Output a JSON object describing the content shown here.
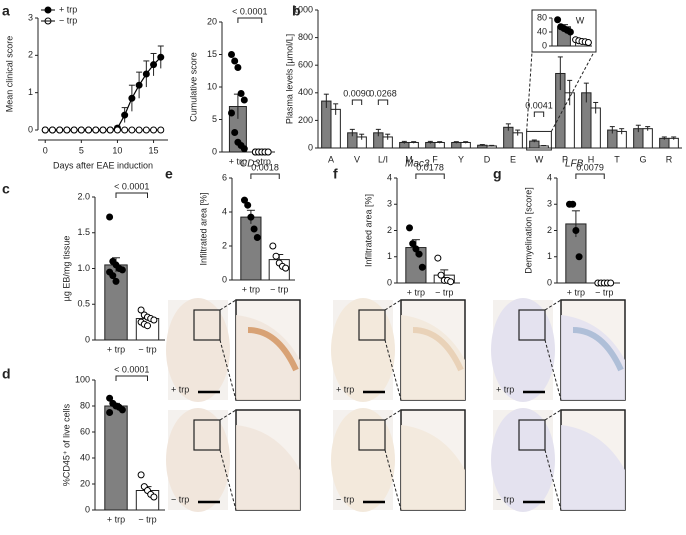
{
  "chart_data": [
    {
      "type": "line",
      "panel_label": "a",
      "y_label": "Mean clinical score",
      "x_label": "Days after EAE induction",
      "x": [
        0,
        1,
        2,
        3,
        4,
        5,
        6,
        7,
        8,
        9,
        10,
        11,
        12,
        13,
        14,
        15,
        16
      ],
      "series": [
        {
          "name": "+ trp",
          "color": "#000000",
          "marker": "filled",
          "values": [
            0,
            0,
            0,
            0,
            0,
            0,
            0,
            0,
            0,
            0,
            0.05,
            0.4,
            0.85,
            1.2,
            1.5,
            1.75,
            1.95
          ],
          "errors": [
            0,
            0,
            0,
            0,
            0,
            0,
            0,
            0,
            0,
            0,
            0.05,
            0.2,
            0.35,
            0.35,
            0.35,
            0.3,
            0.3
          ]
        },
        {
          "name": "− trp",
          "color": "#000000",
          "marker": "open",
          "values": [
            0,
            0,
            0,
            0,
            0,
            0,
            0,
            0,
            0,
            0,
            0,
            0,
            0,
            0,
            0,
            0,
            0
          ]
        }
      ],
      "xlim": [
        -1,
        17
      ],
      "xticks": [
        0,
        5,
        10,
        15
      ],
      "ylim": [
        0,
        3
      ],
      "yticks": [
        0,
        1,
        2,
        3
      ],
      "legend": "upper left"
    },
    {
      "type": "bar",
      "y_label": "Cumulative score",
      "categories": [
        "+ trp",
        "− trp"
      ],
      "values": [
        7,
        0
      ],
      "errors": [
        1.9,
        0
      ],
      "colors": [
        "#808080",
        "#ffffff"
      ],
      "points": [
        [
          15,
          14,
          13,
          9,
          8,
          6,
          3,
          1.5,
          1,
          0.5
        ],
        [
          0,
          0,
          0,
          0,
          0,
          0,
          0,
          0,
          0,
          0
        ]
      ],
      "ylim": [
        0,
        20
      ],
      "yticks": [
        0,
        5,
        10,
        15,
        20
      ],
      "annotation": "< 0.0001"
    },
    {
      "type": "grouped_bar",
      "panel_label": "b",
      "y_label": "Plasma levels [µmol/L]",
      "categories": [
        "A",
        "V",
        "L/I",
        "M",
        "F",
        "Y",
        "D",
        "E",
        "W",
        "P",
        "H",
        "T",
        "G",
        "R"
      ],
      "series": [
        {
          "color": "#808080",
          "values": [
            340,
            110,
            110,
            40,
            40,
            40,
            20,
            150,
            50,
            540,
            400,
            130,
            140,
            70
          ],
          "errors": [
            50,
            25,
            25,
            8,
            8,
            6,
            5,
            25,
            8,
            120,
            70,
            25,
            25,
            10
          ]
        },
        {
          "color": "#ffffff",
          "values": [
            280,
            80,
            80,
            40,
            40,
            40,
            15,
            110,
            15,
            400,
            290,
            120,
            140,
            70
          ],
          "errors": [
            40,
            20,
            20,
            6,
            6,
            6,
            4,
            20,
            3,
            90,
            40,
            20,
            15,
            10
          ]
        }
      ],
      "ylim": [
        0,
        1000
      ],
      "yticks": [
        0,
        200,
        400,
        600,
        800,
        1000
      ],
      "annotations": [
        "0.0090",
        "0.0268",
        "0.0041"
      ]
    },
    {
      "type": "bar",
      "title": "W",
      "values": [
        55,
        15
      ],
      "errors": [
        6,
        2
      ],
      "colors": [
        "#808080",
        "#ffffff"
      ],
      "points": [
        [
          75,
          55,
          50,
          45,
          40
        ],
        [
          18,
          15,
          13,
          12,
          10
        ]
      ],
      "ylim": [
        0,
        80
      ],
      "yticks": [
        0,
        40,
        80
      ]
    },
    {
      "type": "bar",
      "panel_label": "c",
      "y_label": "µg EB/mg tissue",
      "categories": [
        "+ trp",
        "− trp"
      ],
      "values": [
        1.05,
        0.3
      ],
      "errors": [
        0.1,
        0.03
      ],
      "colors": [
        "#808080",
        "#ffffff"
      ],
      "points": [
        [
          1.72,
          1.1,
          1.05,
          1.0,
          0.98,
          0.95,
          0.9,
          0.82
        ],
        [
          0.42,
          0.35,
          0.32,
          0.3,
          0.28,
          0.25,
          0.22,
          0.2
        ]
      ],
      "ylim": [
        0,
        2
      ],
      "yticks": [
        0,
        0.5,
        {
          "value": 1,
          "label": "1.0"
        },
        1.5,
        {
          "value": 2,
          "label": "2.0"
        }
      ],
      "annotation": "< 0.0001"
    },
    {
      "type": "bar",
      "panel_label": "d",
      "y_label": "%CD45⁺ of live cells",
      "categories": [
        "+ trp",
        "− trp"
      ],
      "values": [
        80,
        15
      ],
      "errors": [
        2,
        3
      ],
      "colors": [
        "#808080",
        "#ffffff"
      ],
      "points": [
        [
          86,
          82,
          80,
          79,
          77,
          75
        ],
        [
          27,
          18,
          15,
          12,
          10
        ]
      ],
      "ylim": [
        0,
        100
      ],
      "yticks": [
        0,
        20,
        40,
        60,
        80,
        100
      ],
      "annotation": "< 0.0001"
    },
    {
      "type": "bar",
      "panel_label": "e",
      "title": "CD3",
      "y_label": "Infiltrated area [%]",
      "categories": [
        "+ trp",
        "− trp"
      ],
      "values": [
        3.7,
        1.2
      ],
      "errors": [
        0.4,
        0.3
      ],
      "colors": [
        "#808080",
        "#ffffff"
      ],
      "points": [
        [
          4.7,
          4.4,
          3.7,
          3.0,
          2.5
        ],
        [
          2.0,
          1.4,
          1.0,
          0.8,
          0.7
        ]
      ],
      "ylim": [
        0,
        6
      ],
      "yticks": [
        0,
        2,
        4,
        6
      ],
      "annotation": "0.0018",
      "image_labels": [
        "+ trp",
        "− trp"
      ]
    },
    {
      "type": "bar",
      "panel_label": "f",
      "title": "Mac3",
      "y_label": "Infiltrated area [%]",
      "categories": [
        "+ trp",
        "− trp"
      ],
      "values": [
        1.35,
        0.3
      ],
      "errors": [
        0.3,
        0.2
      ],
      "colors": [
        "#808080",
        "#ffffff"
      ],
      "points": [
        [
          2.1,
          1.5,
          1.3,
          1.1,
          0.6
        ],
        [
          0.95,
          0.3,
          0.1,
          0.1,
          0.05
        ]
      ],
      "ylim": [
        0,
        4
      ],
      "yticks": [
        0,
        1,
        2,
        3,
        4
      ],
      "annotation": "0.0178",
      "image_labels": [
        "+ trp",
        "− trp"
      ]
    },
    {
      "type": "bar",
      "panel_label": "g",
      "title": "LFB",
      "y_label": "Demyelination [score]",
      "categories": [
        "+ trp",
        "− trp"
      ],
      "values": [
        2.25,
        0
      ],
      "errors": [
        0.5,
        0
      ],
      "colors": [
        "#808080",
        "#ffffff"
      ],
      "points": [
        [
          3,
          3,
          2,
          1
        ],
        [
          0,
          0,
          0,
          0,
          0
        ]
      ],
      "ylim": [
        0,
        4
      ],
      "yticks": [
        0,
        1,
        2,
        3,
        4
      ],
      "annotation": "0.0079",
      "image_labels": [
        "+ trp",
        "− trp"
      ]
    }
  ]
}
